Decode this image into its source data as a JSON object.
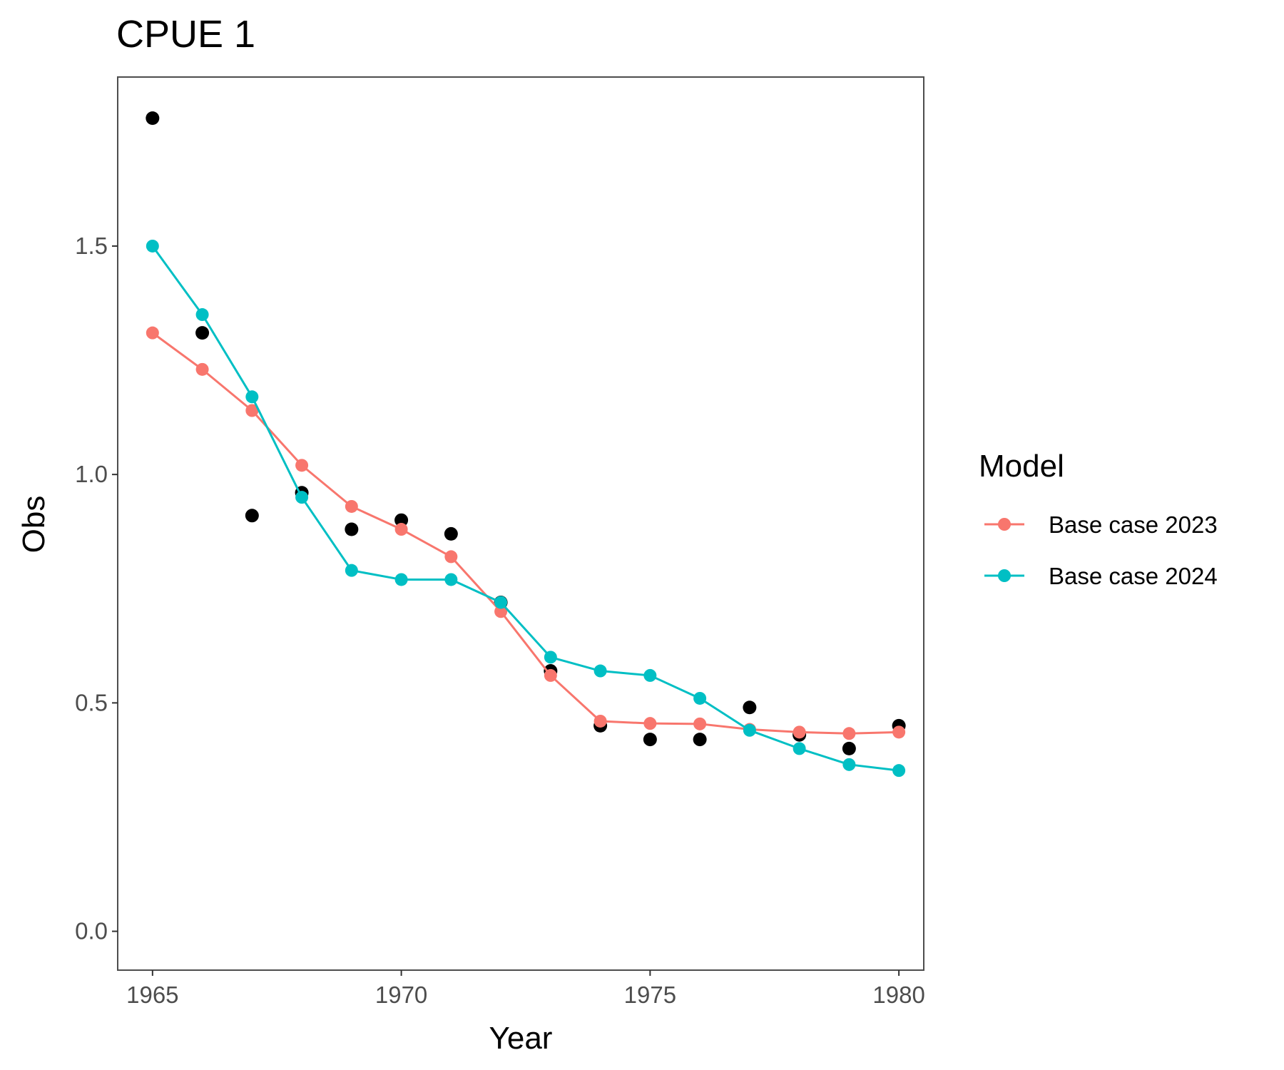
{
  "chart_data": {
    "type": "line",
    "title": "CPUE 1",
    "xlabel": "Year",
    "ylabel": "Obs",
    "xlim": [
      1964.3,
      1980.5
    ],
    "ylim": [
      -0.085,
      1.87
    ],
    "xticks": [
      1965,
      1970,
      1975,
      1980
    ],
    "xtick_labels": [
      "1965",
      "1970",
      "1975",
      "1980"
    ],
    "yticks": [
      0.0,
      0.5,
      1.0,
      1.5
    ],
    "ytick_labels": [
      "0.0",
      "0.5",
      "1.0",
      "1.5"
    ],
    "grid": false,
    "legend": {
      "title": "Model",
      "position": "right"
    },
    "x": [
      1965,
      1966,
      1967,
      1968,
      1969,
      1970,
      1971,
      1972,
      1973,
      1974,
      1975,
      1976,
      1977,
      1978,
      1979,
      1980
    ],
    "observed": {
      "color": "#000000",
      "values": [
        1.78,
        1.31,
        0.91,
        0.96,
        0.88,
        0.9,
        0.87,
        0.72,
        0.57,
        0.45,
        0.42,
        0.42,
        0.49,
        0.43,
        0.4,
        0.45
      ]
    },
    "series": [
      {
        "name": "Base case 2023",
        "color": "#F8766D",
        "values": [
          1.31,
          1.23,
          1.14,
          1.02,
          0.93,
          0.88,
          0.82,
          0.7,
          0.56,
          0.46,
          0.455,
          0.454,
          0.442,
          0.436,
          0.433,
          0.436
        ]
      },
      {
        "name": "Base case 2024",
        "color": "#00BFC4",
        "values": [
          1.5,
          1.35,
          1.17,
          0.95,
          0.79,
          0.77,
          0.77,
          0.72,
          0.6,
          0.57,
          0.56,
          0.51,
          0.44,
          0.4,
          0.365,
          0.352
        ]
      }
    ]
  }
}
